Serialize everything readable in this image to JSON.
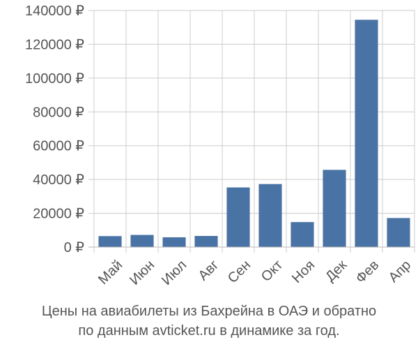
{
  "chart_data": {
    "type": "bar",
    "title": "",
    "xlabel": "",
    "ylabel": "",
    "currency_suffix": " ₽",
    "categories": [
      "Май",
      "Июн",
      "Июл",
      "Авг",
      "Сен",
      "Окт",
      "Ноя",
      "Дек",
      "Фев",
      "Апр"
    ],
    "values": [
      6500,
      7200,
      5800,
      6600,
      35300,
      37300,
      14800,
      45700,
      134500,
      17200
    ],
    "ylim": [
      0,
      140000
    ],
    "yticks": [
      0,
      20000,
      40000,
      60000,
      80000,
      100000,
      120000,
      140000
    ],
    "ytick_labels": [
      "0 ₽",
      "20000 ₽",
      "40000 ₽",
      "60000 ₽",
      "80000 ₽",
      "100000 ₽",
      "120000 ₽",
      "140000 ₽"
    ],
    "grid": true,
    "bar_color": "#4a73a5",
    "grid_color": "#cccccc",
    "text_color": "#555555"
  },
  "caption": {
    "line1": "Цены на авиабилеты из Бахрейна в ОАЭ и обратно",
    "line2": "по данным avticket.ru в динамике за год."
  }
}
